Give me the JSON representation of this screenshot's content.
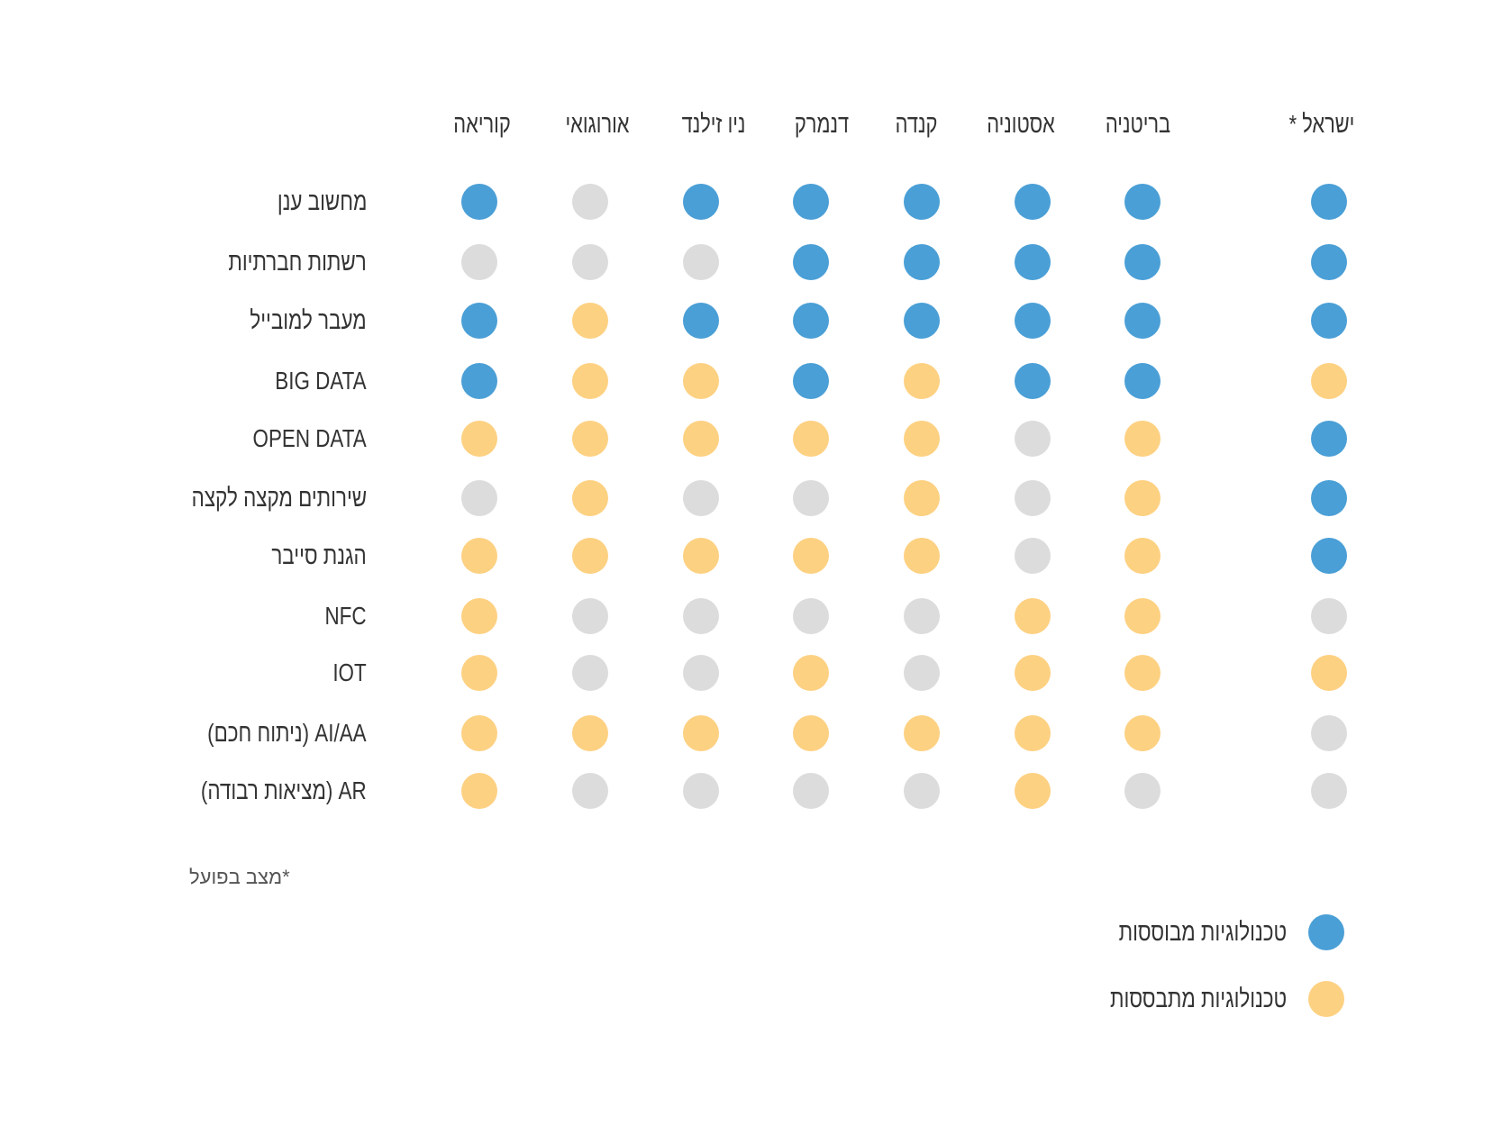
{
  "colors": {
    "established": "#4a9fd6",
    "emerging": "#fdd182",
    "none": "#dcdcdc"
  },
  "chart_data": {
    "type": "table",
    "columns": [
      "ישראל *",
      "בריטניה",
      "אסטוניה",
      "קנדה",
      "דנמרק",
      "ניו זילנד",
      "אורוגואי",
      "קוריאה"
    ],
    "rows": [
      {
        "label": "מחשוב ענן",
        "values": [
          "established",
          "established",
          "established",
          "established",
          "established",
          "established",
          "none",
          "established"
        ]
      },
      {
        "label": "רשתות חברתיות",
        "values": [
          "established",
          "established",
          "established",
          "established",
          "established",
          "none",
          "none",
          "none"
        ]
      },
      {
        "label": "מעבר למובייל",
        "values": [
          "established",
          "established",
          "established",
          "established",
          "established",
          "established",
          "emerging",
          "established"
        ]
      },
      {
        "label": "BIG DATA",
        "values": [
          "emerging",
          "established",
          "established",
          "emerging",
          "established",
          "emerging",
          "emerging",
          "established"
        ]
      },
      {
        "label": "OPEN DATA",
        "values": [
          "established",
          "emerging",
          "none",
          "emerging",
          "emerging",
          "emerging",
          "emerging",
          "emerging"
        ]
      },
      {
        "label": "שירותים מקצה לקצה",
        "values": [
          "established",
          "emerging",
          "none",
          "emerging",
          "none",
          "none",
          "emerging",
          "none"
        ]
      },
      {
        "label": "הגנת סייבר",
        "values": [
          "established",
          "emerging",
          "none",
          "emerging",
          "emerging",
          "emerging",
          "emerging",
          "emerging"
        ]
      },
      {
        "label": "NFC",
        "values": [
          "none",
          "emerging",
          "emerging",
          "none",
          "none",
          "none",
          "none",
          "emerging"
        ]
      },
      {
        "label": "IOT",
        "values": [
          "emerging",
          "emerging",
          "emerging",
          "none",
          "emerging",
          "none",
          "none",
          "emerging"
        ]
      },
      {
        "label": "AI/AA (ניתוח חכם)",
        "values": [
          "none",
          "emerging",
          "emerging",
          "emerging",
          "emerging",
          "emerging",
          "emerging",
          "emerging"
        ]
      },
      {
        "label": "AR (מציאות רבודה)",
        "values": [
          "none",
          "none",
          "emerging",
          "none",
          "none",
          "none",
          "none",
          "emerging"
        ]
      }
    ],
    "legend": [
      {
        "key": "established",
        "label": "טכנולוגיות מבוססות"
      },
      {
        "key": "emerging",
        "label": "טכנולוגיות מתבססות"
      }
    ],
    "footnote": "*מצב בפועל"
  }
}
